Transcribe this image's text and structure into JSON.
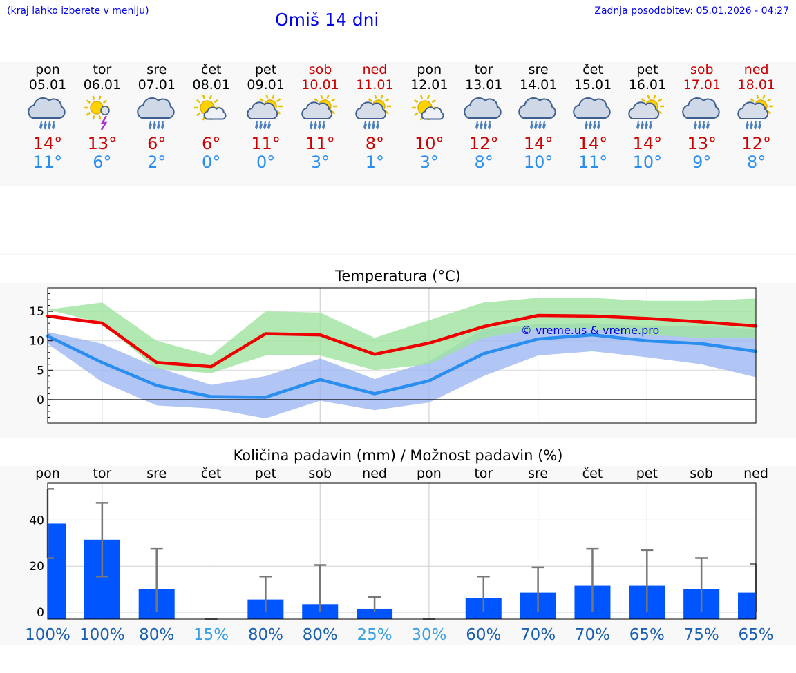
{
  "header": {
    "left_note": "(kraj lahko izberete v meniju)",
    "title": "Omiš 14 dni",
    "updated": "Zadnja posodobitev: 05.01.2026 - 04:27"
  },
  "colors": {
    "link": "#0000ee",
    "weekend": "#cc0000",
    "max_line": "#ee0000",
    "min_line": "#2a8ef0",
    "max_band": "#9fe39f",
    "min_band": "#9db8f2",
    "bar": "#0055ff"
  },
  "days": [
    {
      "name": "pon",
      "date": "05.01",
      "weekend": false,
      "icon": "cloud-rain-icon",
      "tmax": "14°",
      "tmin": "11°"
    },
    {
      "name": "tor",
      "date": "06.01",
      "weekend": false,
      "icon": "sun-storm-icon",
      "tmax": "13°",
      "tmin": "6°"
    },
    {
      "name": "sre",
      "date": "07.01",
      "weekend": false,
      "icon": "cloud-rain-icon",
      "tmax": "6°",
      "tmin": "2°"
    },
    {
      "name": "čet",
      "date": "08.01",
      "weekend": false,
      "icon": "sun-cloud-icon",
      "tmax": "6°",
      "tmin": "0°"
    },
    {
      "name": "pet",
      "date": "09.01",
      "weekend": false,
      "icon": "sun-cloud-rain-icon",
      "tmax": "11°",
      "tmin": "0°"
    },
    {
      "name": "sob",
      "date": "10.01",
      "weekend": true,
      "icon": "sun-cloud-rain-icon",
      "tmax": "11°",
      "tmin": "3°"
    },
    {
      "name": "ned",
      "date": "11.01",
      "weekend": true,
      "icon": "sun-cloud-rain-icon",
      "tmax": "8°",
      "tmin": "1°"
    },
    {
      "name": "pon",
      "date": "12.01",
      "weekend": false,
      "icon": "sun-cloud-icon",
      "tmax": "10°",
      "tmin": "3°"
    },
    {
      "name": "tor",
      "date": "13.01",
      "weekend": false,
      "icon": "cloud-rain-icon",
      "tmax": "12°",
      "tmin": "8°"
    },
    {
      "name": "sre",
      "date": "14.01",
      "weekend": false,
      "icon": "cloud-rain-icon",
      "tmax": "14°",
      "tmin": "10°"
    },
    {
      "name": "čet",
      "date": "15.01",
      "weekend": false,
      "icon": "cloud-rain-icon",
      "tmax": "14°",
      "tmin": "11°"
    },
    {
      "name": "pet",
      "date": "16.01",
      "weekend": false,
      "icon": "sun-cloud-rain-icon",
      "tmax": "14°",
      "tmin": "10°"
    },
    {
      "name": "sob",
      "date": "17.01",
      "weekend": true,
      "icon": "cloud-rain-icon",
      "tmax": "13°",
      "tmin": "9°"
    },
    {
      "name": "ned",
      "date": "18.01",
      "weekend": true,
      "icon": "sun-cloud-rain-icon",
      "tmax": "12°",
      "tmin": "8°"
    }
  ],
  "chart_data": [
    {
      "type": "line",
      "title": "Temperatura (°C)",
      "watermark": "© vreme.us & vreme.pro",
      "ylim": [
        -4,
        19
      ],
      "yticks": [
        0,
        5,
        10,
        15
      ],
      "grid": true,
      "series": [
        {
          "name": "max",
          "values": [
            14.2,
            13.0,
            6.3,
            5.6,
            11.2,
            11.0,
            7.7,
            9.6,
            12.4,
            14.3,
            14.2,
            13.8,
            13.2,
            12.5
          ],
          "band_low": [
            15.3,
            13.0,
            5.2,
            4.5,
            7.5,
            7.5,
            5.0,
            6.0,
            10.5,
            12.0,
            12.0,
            11.0,
            10.5,
            10.5
          ],
          "band_high": [
            15.3,
            16.5,
            10.0,
            7.5,
            15.0,
            14.8,
            10.5,
            13.5,
            16.5,
            17.3,
            17.3,
            16.8,
            16.8,
            17.2
          ]
        },
        {
          "name": "min",
          "values": [
            10.8,
            6.3,
            2.4,
            0.5,
            0.4,
            3.4,
            1.0,
            3.2,
            7.8,
            10.3,
            11.0,
            10.0,
            9.5,
            8.2
          ],
          "band_low": [
            9.5,
            3.0,
            -1.0,
            -1.5,
            -3.2,
            -0.2,
            -1.8,
            -0.5,
            4.0,
            7.5,
            8.2,
            7.2,
            6.0,
            3.8
          ],
          "band_high": [
            11.5,
            9.5,
            5.5,
            2.5,
            4.0,
            7.0,
            3.5,
            6.5,
            12.0,
            12.8,
            13.0,
            12.5,
            12.5,
            12.0
          ]
        }
      ]
    },
    {
      "type": "bar",
      "title": "Količina padavin (mm) / Možnost padavin (%)",
      "categories": [
        "pon",
        "tor",
        "sre",
        "čet",
        "pet",
        "sob",
        "ned",
        "pon",
        "tor",
        "sre",
        "čet",
        "pet",
        "sob",
        "ned"
      ],
      "values": [
        38.5,
        31.5,
        10,
        0,
        5.5,
        3.5,
        1.5,
        0,
        6,
        8.5,
        11.5,
        11.5,
        10,
        8.5
      ],
      "err_low": [
        23.5,
        15.5,
        0,
        0,
        0,
        0,
        0,
        0,
        0,
        0,
        0,
        0,
        0,
        0
      ],
      "err_high": [
        53.5,
        47.5,
        27.5,
        0,
        15.5,
        20.5,
        6.5,
        0,
        15.5,
        19.5,
        27.5,
        27.0,
        23.5,
        21.0
      ],
      "ylim": [
        -3,
        56
      ],
      "yticks": [
        0,
        20,
        40
      ],
      "probabilities": [
        "100%",
        "100%",
        "80%",
        "15%",
        "80%",
        "80%",
        "25%",
        "30%",
        "60%",
        "70%",
        "70%",
        "65%",
        "75%",
        "65%"
      ],
      "prob_levels": [
        "high",
        "high",
        "high",
        "low",
        "high",
        "high",
        "low",
        "low",
        "high",
        "high",
        "high",
        "high",
        "high",
        "high"
      ]
    }
  ]
}
